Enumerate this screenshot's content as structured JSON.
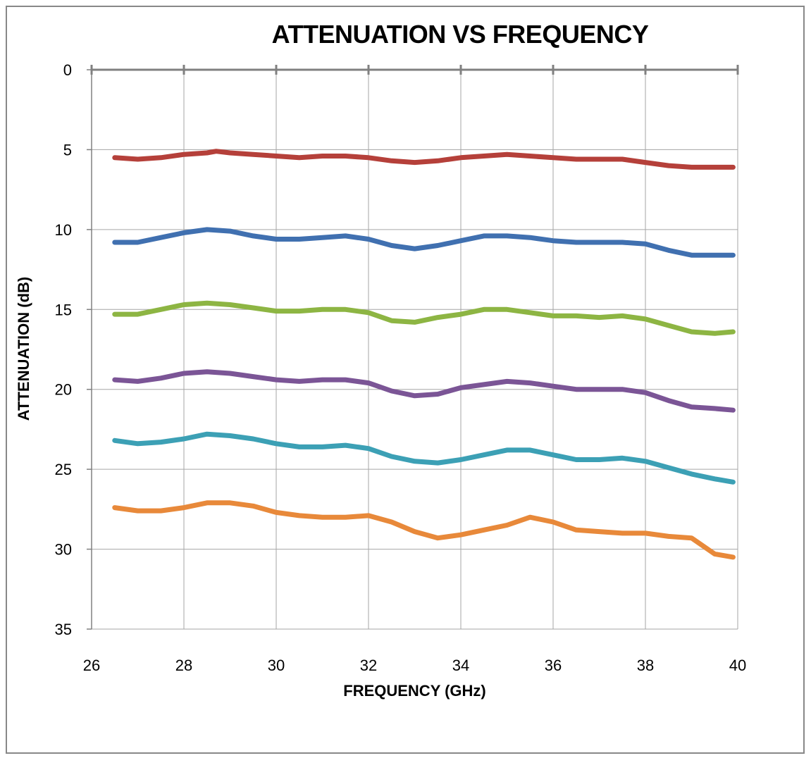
{
  "chart_data": {
    "type": "line",
    "title": "ATTENUATION VS FREQUENCY",
    "xlabel": "FREQUENCY (GHz)",
    "ylabel": "ATTENUATION (dB)",
    "xlim": [
      26,
      40
    ],
    "ylim": [
      0,
      35
    ],
    "y_inverted": true,
    "x_axis_position": "top",
    "xticks": [
      26,
      28,
      30,
      32,
      34,
      36,
      38,
      40
    ],
    "yticks": [
      0,
      5,
      10,
      15,
      20,
      25,
      30,
      35
    ],
    "grid": true,
    "legend": "none",
    "series": [
      {
        "color": "#b5403a",
        "x": [
          26.5,
          27.0,
          27.5,
          28.0,
          28.5,
          28.7,
          29.0,
          29.5,
          30.0,
          30.5,
          31.0,
          31.5,
          32.0,
          32.5,
          33.0,
          33.5,
          34.0,
          34.5,
          35.0,
          35.5,
          36.0,
          36.5,
          37.0,
          37.5,
          38.0,
          38.5,
          39.0,
          39.5,
          39.9
        ],
        "values": [
          5.5,
          5.6,
          5.5,
          5.3,
          5.2,
          5.1,
          5.2,
          5.3,
          5.4,
          5.5,
          5.4,
          5.4,
          5.5,
          5.7,
          5.8,
          5.7,
          5.5,
          5.4,
          5.3,
          5.4,
          5.5,
          5.6,
          5.6,
          5.6,
          5.8,
          6.0,
          6.1,
          6.1,
          6.1
        ]
      },
      {
        "color": "#4070b0",
        "x": [
          26.5,
          27.0,
          27.5,
          28.0,
          28.5,
          29.0,
          29.5,
          30.0,
          30.5,
          31.0,
          31.5,
          32.0,
          32.5,
          33.0,
          33.5,
          34.0,
          34.5,
          35.0,
          35.5,
          36.0,
          36.5,
          37.0,
          37.5,
          38.0,
          38.5,
          39.0,
          39.5,
          39.9
        ],
        "values": [
          10.8,
          10.8,
          10.5,
          10.2,
          10.0,
          10.1,
          10.4,
          10.6,
          10.6,
          10.5,
          10.4,
          10.6,
          11.0,
          11.2,
          11.0,
          10.7,
          10.4,
          10.4,
          10.5,
          10.7,
          10.8,
          10.8,
          10.8,
          10.9,
          11.3,
          11.6,
          11.6,
          11.6
        ]
      },
      {
        "color": "#8db543",
        "x": [
          26.5,
          27.0,
          27.5,
          28.0,
          28.5,
          29.0,
          29.5,
          30.0,
          30.5,
          31.0,
          31.5,
          32.0,
          32.5,
          33.0,
          33.5,
          34.0,
          34.5,
          35.0,
          35.5,
          36.0,
          36.5,
          37.0,
          37.5,
          38.0,
          38.5,
          39.0,
          39.5,
          39.9
        ],
        "values": [
          15.3,
          15.3,
          15.0,
          14.7,
          14.6,
          14.7,
          14.9,
          15.1,
          15.1,
          15.0,
          15.0,
          15.2,
          15.7,
          15.8,
          15.5,
          15.3,
          15.0,
          15.0,
          15.2,
          15.4,
          15.4,
          15.5,
          15.4,
          15.6,
          16.0,
          16.4,
          16.5,
          16.4
        ]
      },
      {
        "color": "#7b5596",
        "x": [
          26.5,
          27.0,
          27.5,
          28.0,
          28.5,
          29.0,
          29.5,
          30.0,
          30.5,
          31.0,
          31.5,
          32.0,
          32.5,
          33.0,
          33.5,
          34.0,
          34.5,
          35.0,
          35.5,
          36.0,
          36.5,
          37.0,
          37.5,
          38.0,
          38.5,
          39.0,
          39.5,
          39.9
        ],
        "values": [
          19.4,
          19.5,
          19.3,
          19.0,
          18.9,
          19.0,
          19.2,
          19.4,
          19.5,
          19.4,
          19.4,
          19.6,
          20.1,
          20.4,
          20.3,
          19.9,
          19.7,
          19.5,
          19.6,
          19.8,
          20.0,
          20.0,
          20.0,
          20.2,
          20.7,
          21.1,
          21.2,
          21.3
        ]
      },
      {
        "color": "#3ca0b5",
        "x": [
          26.5,
          27.0,
          27.5,
          28.0,
          28.5,
          29.0,
          29.5,
          30.0,
          30.5,
          31.0,
          31.5,
          32.0,
          32.5,
          33.0,
          33.5,
          34.0,
          34.5,
          35.0,
          35.5,
          36.0,
          36.5,
          37.0,
          37.5,
          38.0,
          38.5,
          39.0,
          39.5,
          39.9
        ],
        "values": [
          23.2,
          23.4,
          23.3,
          23.1,
          22.8,
          22.9,
          23.1,
          23.4,
          23.6,
          23.6,
          23.5,
          23.7,
          24.2,
          24.5,
          24.6,
          24.4,
          24.1,
          23.8,
          23.8,
          24.1,
          24.4,
          24.4,
          24.3,
          24.5,
          24.9,
          25.3,
          25.6,
          25.8
        ]
      },
      {
        "color": "#e8893a",
        "x": [
          26.5,
          27.0,
          27.5,
          28.0,
          28.5,
          29.0,
          29.5,
          30.0,
          30.5,
          31.0,
          31.5,
          32.0,
          32.5,
          33.0,
          33.5,
          34.0,
          34.5,
          35.0,
          35.5,
          36.0,
          36.5,
          37.0,
          37.5,
          38.0,
          38.5,
          39.0,
          39.5,
          39.9
        ],
        "values": [
          27.4,
          27.6,
          27.6,
          27.4,
          27.1,
          27.1,
          27.3,
          27.7,
          27.9,
          28.0,
          28.0,
          27.9,
          28.3,
          28.9,
          29.3,
          29.1,
          28.8,
          28.5,
          28.0,
          28.3,
          28.8,
          28.9,
          29.0,
          29.0,
          29.2,
          29.3,
          30.3,
          30.5
        ]
      }
    ]
  }
}
